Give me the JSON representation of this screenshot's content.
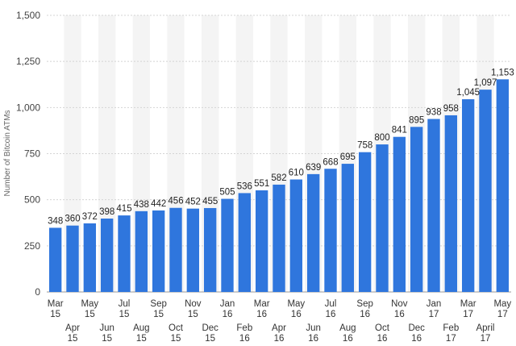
{
  "chart_data": {
    "type": "bar",
    "title": "",
    "xlabel": "",
    "ylabel": "Number of Bitcoin ATMs",
    "ylim": [
      0,
      1500
    ],
    "yticks": [
      "0",
      "250",
      "500",
      "750",
      "1,000",
      "1,250",
      "1,500"
    ],
    "grid": true,
    "categories": [
      [
        "Mar",
        "15"
      ],
      [
        "Apr",
        "15"
      ],
      [
        "May",
        "15"
      ],
      [
        "Jun",
        "15"
      ],
      [
        "Jul",
        "15"
      ],
      [
        "Aug",
        "15"
      ],
      [
        "Sep",
        "15"
      ],
      [
        "Oct",
        "15"
      ],
      [
        "Nov",
        "15"
      ],
      [
        "Dec",
        "15"
      ],
      [
        "Jan",
        "16"
      ],
      [
        "Feb",
        "16"
      ],
      [
        "Mar",
        "16"
      ],
      [
        "Apr",
        "16"
      ],
      [
        "May",
        "16"
      ],
      [
        "Jun",
        "16"
      ],
      [
        "Jul",
        "16"
      ],
      [
        "Aug",
        "16"
      ],
      [
        "Sep",
        "16"
      ],
      [
        "Oct",
        "16"
      ],
      [
        "Nov",
        "16"
      ],
      [
        "Dec",
        "16"
      ],
      [
        "Jan",
        "17"
      ],
      [
        "Feb",
        "17"
      ],
      [
        "Mar",
        "17"
      ],
      [
        "April",
        "17"
      ],
      [
        "May",
        "17"
      ]
    ],
    "values": [
      348,
      360,
      372,
      398,
      415,
      438,
      442,
      456,
      452,
      455,
      505,
      536,
      551,
      582,
      610,
      639,
      668,
      695,
      758,
      800,
      841,
      895,
      938,
      958,
      1045,
      1097,
      1153
    ],
    "value_labels": [
      "348",
      "360",
      "372",
      "398",
      "415",
      "438",
      "442",
      "456",
      "452",
      "455",
      "505",
      "536",
      "551",
      "582",
      "610",
      "639",
      "668",
      "695",
      "758",
      "800",
      "841",
      "895",
      "938",
      "958",
      "1,045",
      "1,097",
      "1,153"
    ],
    "colors": {
      "bar": "#2f76dd",
      "band": "#f4f4f4",
      "grid": "#d4d4d4"
    }
  }
}
